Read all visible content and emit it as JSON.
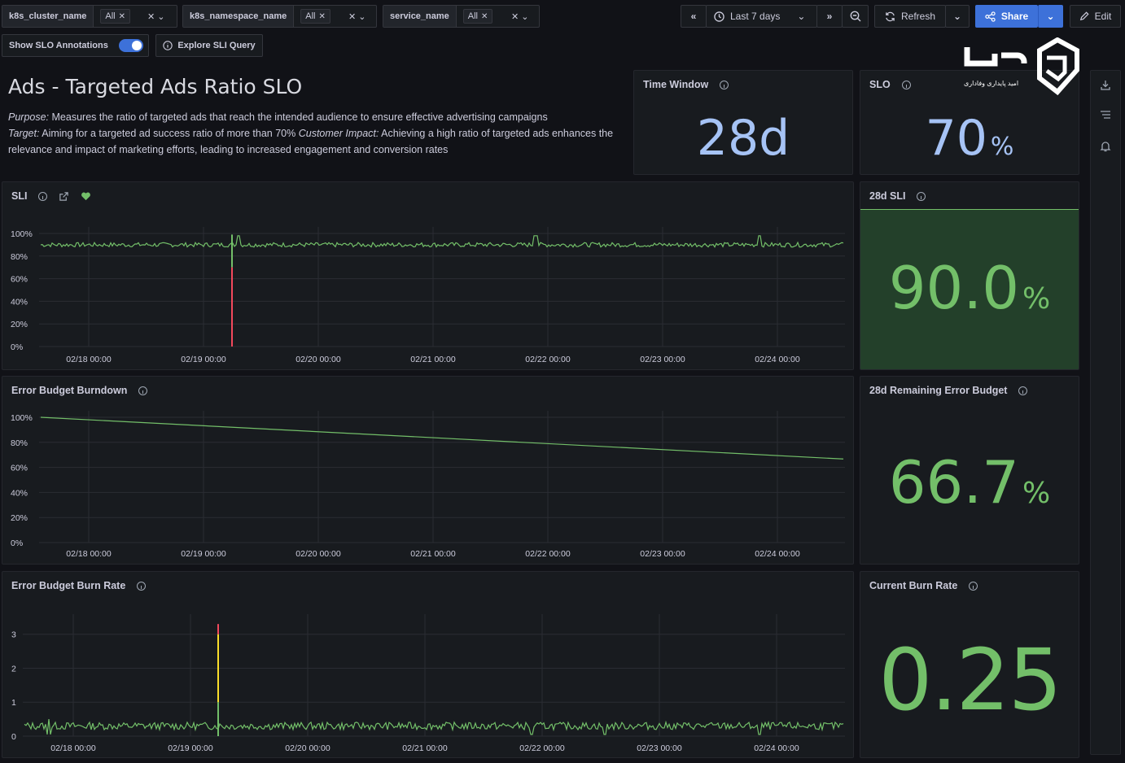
{
  "variables": [
    {
      "label": "k8s_cluster_name",
      "value": "All"
    },
    {
      "label": "k8s_namespace_name",
      "value": "All"
    },
    {
      "label": "service_name",
      "value": "All"
    }
  ],
  "toolbar": {
    "time_range": "Last 7 days",
    "refresh_label": "Refresh",
    "share_label": "Share",
    "edit_label": "Edit"
  },
  "controls": {
    "annotations_label": "Show SLO Annotations",
    "annotations_on": true,
    "explore_label": "Explore SLI Query"
  },
  "logo": {
    "caption": "امید پایداری وفاداری"
  },
  "header": {
    "title": "Ads - Targeted Ads Ratio SLO",
    "purpose_label": "Purpose:",
    "purpose_text": "Measures the ratio of targeted ads that reach the intended audience to ensure effective advertising campaigns",
    "target_label": "Target:",
    "target_text": "Aiming for a targeted ad success ratio of more than 70%",
    "impact_label": "Customer Impact:",
    "impact_text": "Achieving a high ratio of targeted ads enhances the relevance and impact of marketing efforts, leading to increased engagement and conversion rates"
  },
  "stats": {
    "time_window": {
      "title": "Time Window",
      "value": "28d",
      "unit": ""
    },
    "slo": {
      "title": "SLO",
      "value": "70",
      "unit": "%"
    },
    "sli_28d": {
      "title": "28d SLI",
      "value": "90.0",
      "unit": "%",
      "fill_fraction": 0.9
    },
    "remaining_budget": {
      "title": "28d Remaining Error Budget",
      "value": "66.7",
      "unit": "%"
    },
    "burn_rate": {
      "title": "Current Burn Rate",
      "value": "0.25",
      "unit": ""
    }
  },
  "colors": {
    "green": "#73bf69",
    "blue_text": "#a6c3f5",
    "red": "#f2495c",
    "yellow": "#fade2a",
    "fill_green": "#23402a"
  },
  "chart_data": [
    {
      "type": "line",
      "title": "SLI",
      "x_ticks": [
        "02/18 00:00",
        "02/19 00:00",
        "02/20 00:00",
        "02/21 00:00",
        "02/22 00:00",
        "02/23 00:00",
        "02/24 00:00"
      ],
      "y_ticks": [
        "100%",
        "80%",
        "60%",
        "40%",
        "20%",
        "0%"
      ],
      "ylim": [
        0,
        100
      ],
      "series": [
        {
          "values_summary": "hovering ~90%",
          "base": 90,
          "dip_at_day": 1.25,
          "dip_value": 0
        }
      ]
    },
    {
      "type": "line",
      "title": "Error Budget Burndown",
      "x_ticks": [
        "02/18 00:00",
        "02/19 00:00",
        "02/20 00:00",
        "02/21 00:00",
        "02/22 00:00",
        "02/23 00:00",
        "02/24 00:00"
      ],
      "y_ticks": [
        "100%",
        "80%",
        "60%",
        "40%",
        "20%",
        "0%"
      ],
      "ylim": [
        0,
        100
      ],
      "series": [
        {
          "start": 100,
          "end": 66.7
        }
      ]
    },
    {
      "type": "line",
      "title": "Error Budget Burn Rate",
      "x_ticks": [
        "02/18 00:00",
        "02/19 00:00",
        "02/20 00:00",
        "02/21 00:00",
        "02/22 00:00",
        "02/23 00:00",
        "02/24 00:00"
      ],
      "y_ticks": [
        "3",
        "2",
        "1",
        "0"
      ],
      "ylim": [
        0,
        3.4
      ],
      "series": [
        {
          "base": 0.3,
          "spike_at_day": 1.25,
          "spike_value": 3.3
        }
      ]
    }
  ]
}
